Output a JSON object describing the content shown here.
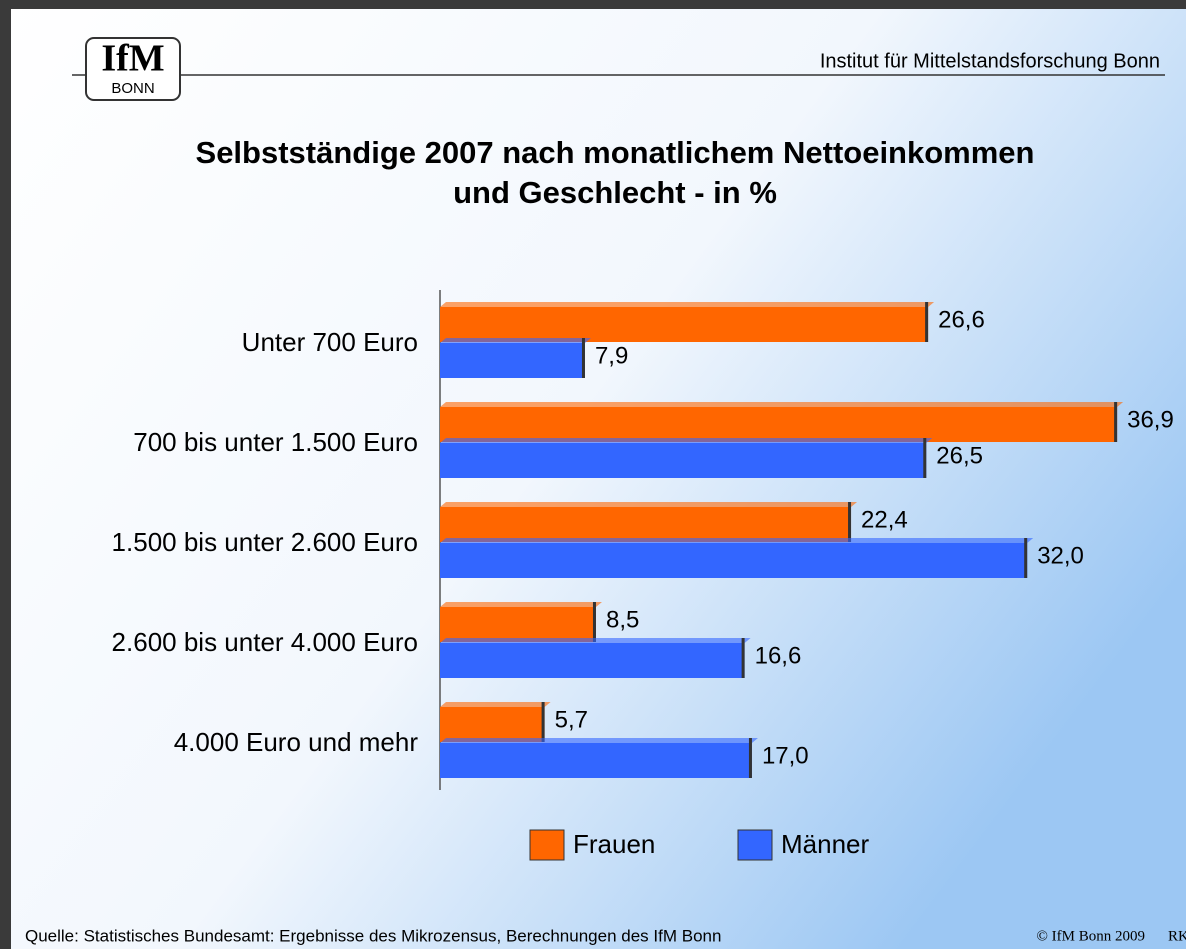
{
  "header": {
    "logo_top": "IfM",
    "logo_bottom": "BONN",
    "institute": "Institut für Mittelstandsforschung Bonn"
  },
  "chart_data": {
    "type": "barh",
    "title": [
      "Selbstständige 2007 nach monatlichem Nettoeinkommen",
      "und Geschlecht -  in  %"
    ],
    "categories": [
      "Unter 700 Euro",
      "700 bis unter 1.500 Euro",
      "1.500 bis unter 2.600 Euro",
      "2.600 bis unter 4.000 Euro",
      "4.000 Euro und mehr"
    ],
    "series": [
      {
        "name": "Frauen",
        "color": "#ff6600",
        "values": [
          26.6,
          36.9,
          22.4,
          8.5,
          5.7
        ],
        "value_labels": [
          "26,6",
          "36,9",
          "22,4",
          "8,5",
          "5,7"
        ]
      },
      {
        "name": "Männer",
        "color": "#3366ff",
        "values": [
          7.9,
          26.5,
          32.0,
          16.6,
          17.0
        ],
        "value_labels": [
          "7,9",
          "26,5",
          "32,0",
          "16,6",
          "17,0"
        ]
      }
    ],
    "legend": "bottom"
  },
  "footer": {
    "source": "Quelle: Statistisches Bundesamt: Ergebnisse des Mikrozensus, Berechnungen des IfM Bonn",
    "copyright": "© IfM Bonn 2009",
    "author": "RK"
  }
}
